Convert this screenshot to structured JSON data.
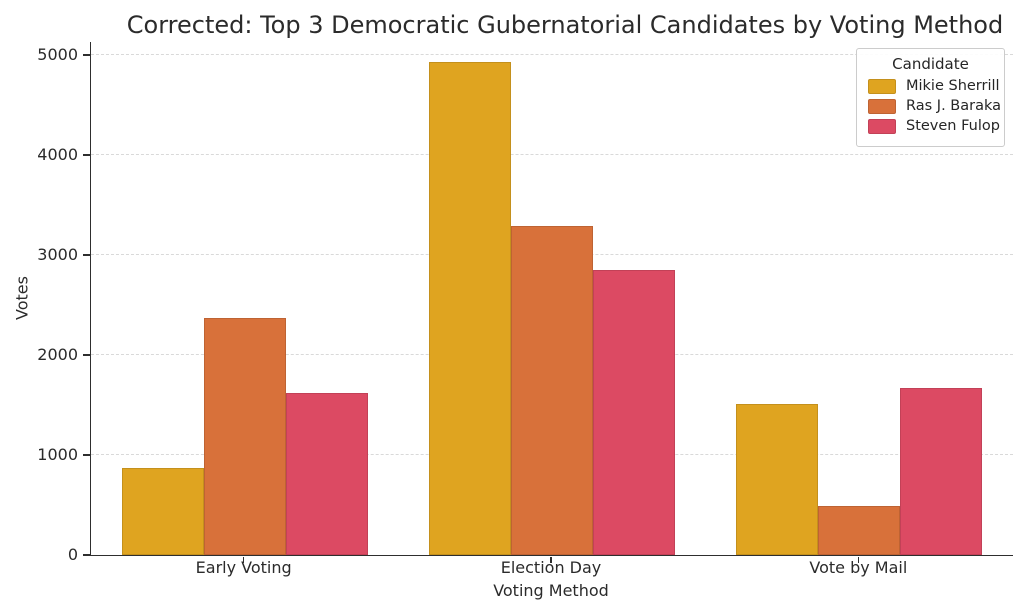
{
  "chart_data": {
    "type": "bar",
    "title": "Corrected: Top 3 Democratic Gubernatorial Candidates by Voting Method",
    "xlabel": "Voting Method",
    "ylabel": "Votes",
    "categories": [
      "Early Voting",
      "Election Day",
      "Vote by Mail"
    ],
    "series": [
      {
        "name": "Mikie Sherrill",
        "color": "#DFA420",
        "values": [
          870,
          4930,
          1510
        ]
      },
      {
        "name": "Ras J. Baraka",
        "color": "#D8713A",
        "values": [
          2370,
          3290,
          490
        ]
      },
      {
        "name": "Steven Fulop",
        "color": "#DC4A63",
        "values": [
          1620,
          2850,
          1670
        ]
      }
    ],
    "ylim": [
      0,
      5130
    ],
    "yticks": [
      0,
      1000,
      2000,
      3000,
      4000,
      5000
    ],
    "grid": "horizontal-dashed",
    "legend": {
      "title": "Candidate",
      "position": "upper right"
    },
    "colors": {
      "background": "#ffffff",
      "text": "#2b2b2b",
      "spine": "#2e2e2e",
      "gridline": "#d9d9d9"
    }
  }
}
